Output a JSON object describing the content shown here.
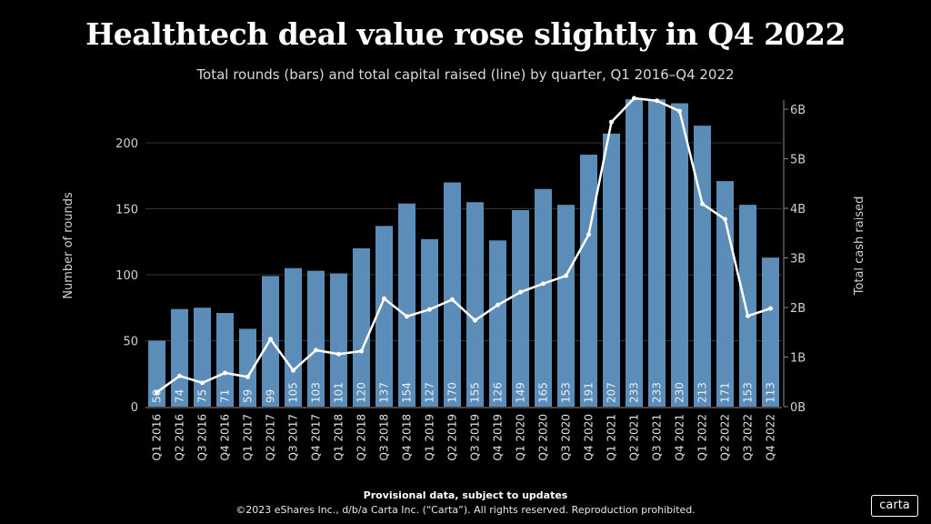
{
  "chart_data": {
    "type": "bar+line",
    "title": "Healthtech deal value rose slightly in Q4 2022",
    "subtitle": "Total rounds (bars) and total capital raised (line) by quarter, Q1 2016–Q4 2022",
    "categories": [
      "Q1 2016",
      "Q2 2016",
      "Q3 2016",
      "Q4 2016",
      "Q1 2017",
      "Q2 2017",
      "Q3 2017",
      "Q4 2017",
      "Q1 2018",
      "Q2 2018",
      "Q3 2018",
      "Q4 2018",
      "Q1 2019",
      "Q2 2019",
      "Q3 2019",
      "Q4 2019",
      "Q1 2020",
      "Q2 2020",
      "Q3 2020",
      "Q4 2020",
      "Q1 2021",
      "Q2 2021",
      "Q3 2021",
      "Q4 2021",
      "Q1 2022",
      "Q2 2022",
      "Q3 2022",
      "Q4 2022"
    ],
    "bars": {
      "axis": "left",
      "values": [
        50,
        74,
        75,
        71,
        59,
        99,
        105,
        103,
        101,
        120,
        137,
        154,
        127,
        170,
        155,
        126,
        149,
        165,
        153,
        191,
        207,
        233,
        233,
        230,
        213,
        171,
        153,
        113
      ],
      "color": "#5b8db8"
    },
    "line": {
      "axis": "right",
      "unit": "B",
      "values": [
        0.29,
        0.62,
        0.48,
        0.68,
        0.6,
        1.36,
        0.73,
        1.14,
        1.06,
        1.12,
        2.18,
        1.82,
        1.96,
        2.16,
        1.74,
        2.05,
        2.31,
        2.48,
        2.64,
        3.47,
        5.74,
        6.22,
        6.17,
        5.96,
        4.09,
        3.78,
        1.83,
        1.98
      ],
      "color": "#ffffff"
    },
    "ylabel_left": "Number of rounds",
    "ylabel_right": "Total cash raised",
    "ylim_left": [
      0,
      225
    ],
    "yticks_left": [
      "0",
      "50",
      "100",
      "150",
      "200"
    ],
    "ylim_right": [
      0,
      6.2
    ],
    "yticks_right": [
      "0B",
      "1B",
      "2B",
      "3B",
      "4B",
      "5B",
      "6B"
    ],
    "grid": true
  },
  "footer": {
    "note": "Provisional data, subject to updates",
    "copyright": "©2023 eShares Inc., d/b/a Carta Inc. (“Carta”). All rights reserved. Reproduction prohibited."
  },
  "logo": "carta"
}
